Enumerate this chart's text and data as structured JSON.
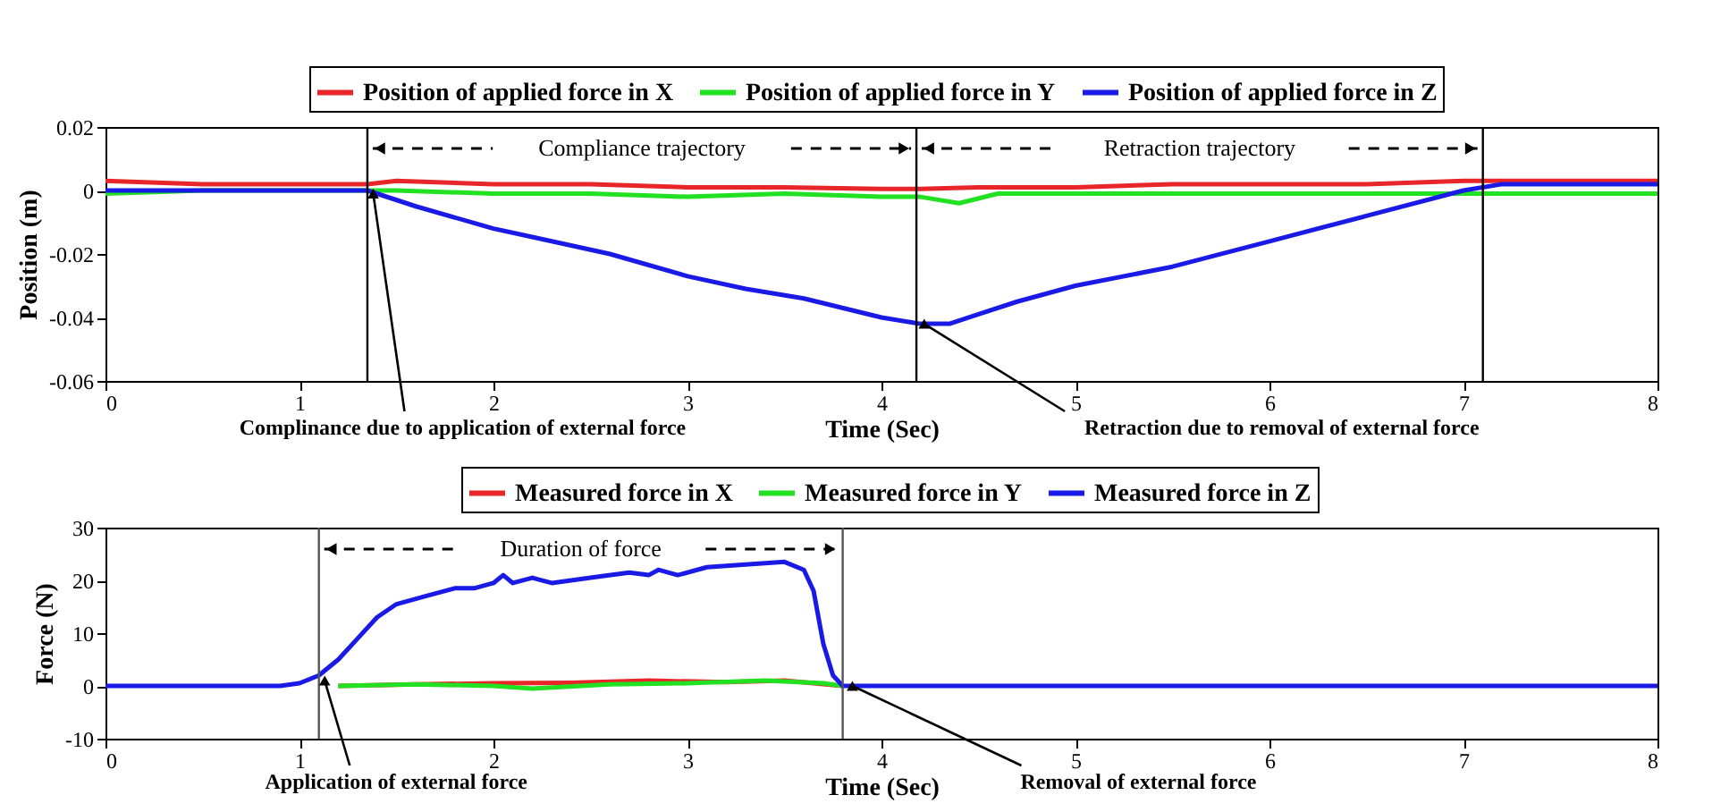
{
  "chart_data": [
    {
      "type": "line",
      "xlabel": "Time (Sec)",
      "ylabel": "Position (m)",
      "xlim": [
        0,
        8
      ],
      "ylim": [
        -0.06,
        0.02
      ],
      "xticks": [
        0,
        1,
        2,
        3,
        4,
        5,
        6,
        7,
        8
      ],
      "yticks": [
        -0.06,
        -0.04,
        -0.02,
        0,
        0.02
      ],
      "grid": false,
      "legend": "top",
      "line_style": "solid",
      "marker": "none",
      "series": [
        {
          "name": "Position of applied force in X",
          "color": "#e8262a",
          "x": [
            0,
            0.5,
            1,
            1.35,
            1.5,
            2,
            2.5,
            3,
            3.5,
            4,
            4.2,
            4.5,
            5,
            5.5,
            6,
            6.5,
            7,
            7.5,
            8
          ],
          "values": [
            0.003,
            0.002,
            0.002,
            0.002,
            0.003,
            0.002,
            0.002,
            0.001,
            0.001,
            0.0005,
            0.0005,
            0.001,
            0.001,
            0.002,
            0.002,
            0.002,
            0.003,
            0.003,
            0.003
          ]
        },
        {
          "name": "Position of applied force in Y",
          "color": "#22e022",
          "x": [
            0,
            0.5,
            1,
            1.5,
            2,
            2.5,
            3,
            3.5,
            4,
            4.2,
            4.4,
            4.6,
            5,
            5.5,
            6,
            6.5,
            7,
            7.5,
            8
          ],
          "values": [
            -0.001,
            0,
            0,
            0,
            -0.001,
            -0.001,
            -0.002,
            -0.001,
            -0.002,
            -0.002,
            -0.004,
            -0.001,
            -0.001,
            -0.001,
            -0.001,
            -0.001,
            -0.001,
            -0.001,
            -0.001
          ]
        },
        {
          "name": "Position of applied force in Z",
          "color": "#1a1ae6",
          "x": [
            0,
            0.5,
            1,
            1.35,
            1.6,
            2,
            2.3,
            2.6,
            3,
            3.3,
            3.6,
            4,
            4.2,
            4.35,
            4.5,
            4.7,
            5,
            5.5,
            6,
            6.5,
            7,
            7.2,
            7.5,
            8
          ],
          "values": [
            0,
            0,
            0,
            0,
            -0.005,
            -0.012,
            -0.016,
            -0.02,
            -0.027,
            -0.031,
            -0.034,
            -0.04,
            -0.042,
            -0.042,
            -0.039,
            -0.035,
            -0.03,
            -0.024,
            -0.016,
            -0.008,
            0,
            0.002,
            0.002,
            0.002
          ]
        }
      ],
      "ref_lines": [
        {
          "axis": "x",
          "value": 1.35,
          "color": "#000000"
        },
        {
          "axis": "x",
          "value": 4.18,
          "color": "#000000"
        },
        {
          "axis": "x",
          "value": 7.1,
          "color": "#000000"
        }
      ],
      "annotations": [
        "Compliance trajectory",
        "Retraction trajectory",
        {
          "text": "Complinance due to application of external force",
          "x": 1.38,
          "y": -0.001
        },
        {
          "text": "Retraction due to removal of external force",
          "x": 4.22,
          "y": -0.042
        }
      ]
    },
    {
      "type": "line",
      "xlabel": "Time (Sec)",
      "ylabel": "Force (N)",
      "xlim": [
        0,
        8
      ],
      "ylim": [
        -10,
        30
      ],
      "xticks": [
        0,
        1,
        2,
        3,
        4,
        5,
        6,
        7,
        8
      ],
      "yticks": [
        -10,
        0,
        10,
        20,
        30
      ],
      "grid": false,
      "legend": "top",
      "line_style": "solid",
      "marker": "none",
      "series": [
        {
          "name": "Measured force in X",
          "color": "#e8262a",
          "x": [
            1.2,
            1.6,
            2,
            2.4,
            2.8,
            3.2,
            3.5,
            3.8
          ],
          "values": [
            0,
            0.3,
            0.5,
            0.6,
            1,
            0.7,
            1,
            0
          ]
        },
        {
          "name": "Measured force in Y",
          "color": "#22e022",
          "x": [
            1.2,
            1.6,
            2,
            2.2,
            2.6,
            3,
            3.4,
            3.7,
            3.8
          ],
          "values": [
            0,
            0.3,
            0,
            -0.5,
            0.3,
            0.5,
            1,
            0.5,
            0
          ]
        },
        {
          "name": "Measured force in Z",
          "color": "#1a1ae6",
          "x": [
            0,
            0.9,
            1,
            1.1,
            1.2,
            1.3,
            1.4,
            1.5,
            1.65,
            1.8,
            1.9,
            2,
            2.05,
            2.1,
            2.2,
            2.3,
            2.5,
            2.7,
            2.8,
            2.85,
            2.95,
            3.1,
            3.3,
            3.5,
            3.6,
            3.65,
            3.7,
            3.75,
            3.8,
            4,
            5,
            6,
            7,
            8
          ],
          "values": [
            0,
            0,
            0.5,
            2,
            5,
            9,
            13,
            15.5,
            17,
            18.5,
            18.5,
            19.5,
            21,
            19.5,
            20.5,
            19.5,
            20.5,
            21.5,
            21,
            22,
            21,
            22.5,
            23,
            23.5,
            22,
            18,
            8,
            2,
            0,
            0,
            0,
            0,
            0,
            0
          ]
        }
      ],
      "ref_lines": [
        {
          "axis": "x",
          "value": 1.1,
          "color": "#555555"
        },
        {
          "axis": "x",
          "value": 3.8,
          "color": "#555555"
        }
      ],
      "annotations": [
        "Duration of force",
        {
          "text": "Application of external force",
          "x": 1.13,
          "y": 1
        },
        {
          "text": "Removal of external force",
          "x": 3.85,
          "y": 0
        }
      ]
    }
  ]
}
